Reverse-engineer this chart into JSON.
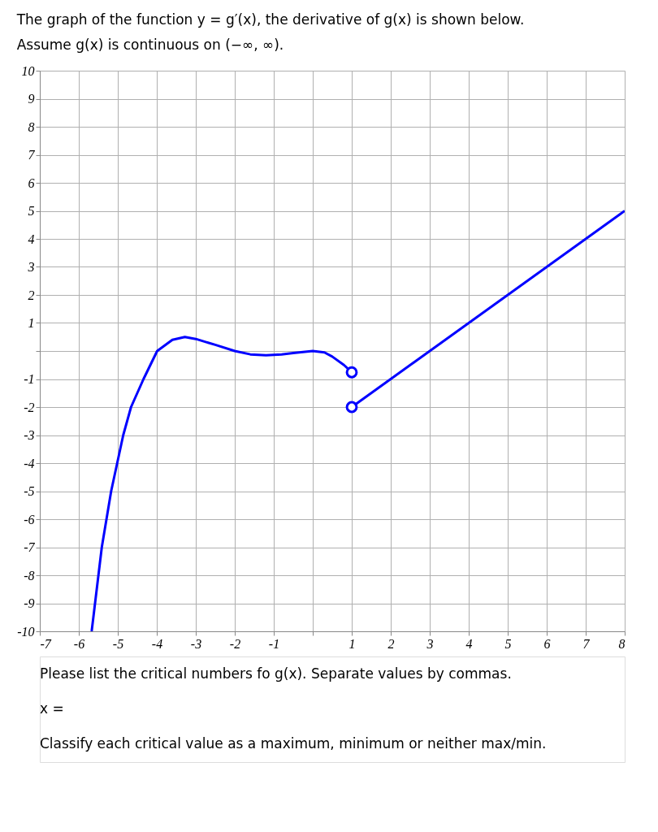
{
  "chart_data": {
    "type": "line",
    "title": "The graph of the function y = g′(x), the derivative of g(x) is shown below.",
    "subtitle": "Assume g(x) is continuous on (−∞, ∞).",
    "annotations": [
      "Please list the critical numbers fo g(x). Separate values by commas.",
      "x =",
      "Classify each critical value as a maximum, minimum or neither max/min."
    ],
    "series": [
      {
        "color": "#0000ff",
        "x": [
          -5.67,
          -5.41,
          -5.17,
          -4.86,
          -4.66,
          -4.34,
          -3.99,
          -3.6,
          -3.28,
          -3.0,
          -2.5,
          -2.0,
          -1.6,
          -1.2,
          -0.8,
          -0.5,
          0.0,
          0.3,
          0.5,
          0.8,
          1.0
        ],
        "values": [
          -10,
          -7,
          -5,
          -3,
          -2,
          -1,
          0,
          0.4,
          0.5,
          0.43,
          0.22,
          0,
          -0.12,
          -0.15,
          -0.12,
          -0.07,
          0,
          -0.05,
          -0.2,
          -0.5,
          -0.76
        ]
      },
      {
        "color": "#0000ff",
        "x": [
          1,
          8
        ],
        "values": [
          -2,
          5
        ]
      },
      {
        "type": "scatter",
        "color": "#0000ff",
        "marker": "circle",
        "x": [
          1,
          1
        ],
        "values": [
          -0.76,
          -2
        ]
      }
    ],
    "xlim": [
      -7,
      8
    ],
    "ylim": [
      -10,
      10
    ],
    "xticks": [
      -7,
      -6,
      -5,
      -4,
      -3,
      -2,
      -1,
      {
        "value": 0,
        "label": null
      },
      1,
      2,
      3,
      4,
      5,
      6,
      7,
      8
    ],
    "yticks": [
      -10,
      -9,
      -8,
      -7,
      -6,
      -5,
      -4,
      -3,
      -2,
      -1,
      {
        "value": 0,
        "label": null
      },
      1,
      2,
      3,
      4,
      5,
      6,
      7,
      8,
      9,
      10
    ],
    "grid": true,
    "line_style": "solid"
  }
}
